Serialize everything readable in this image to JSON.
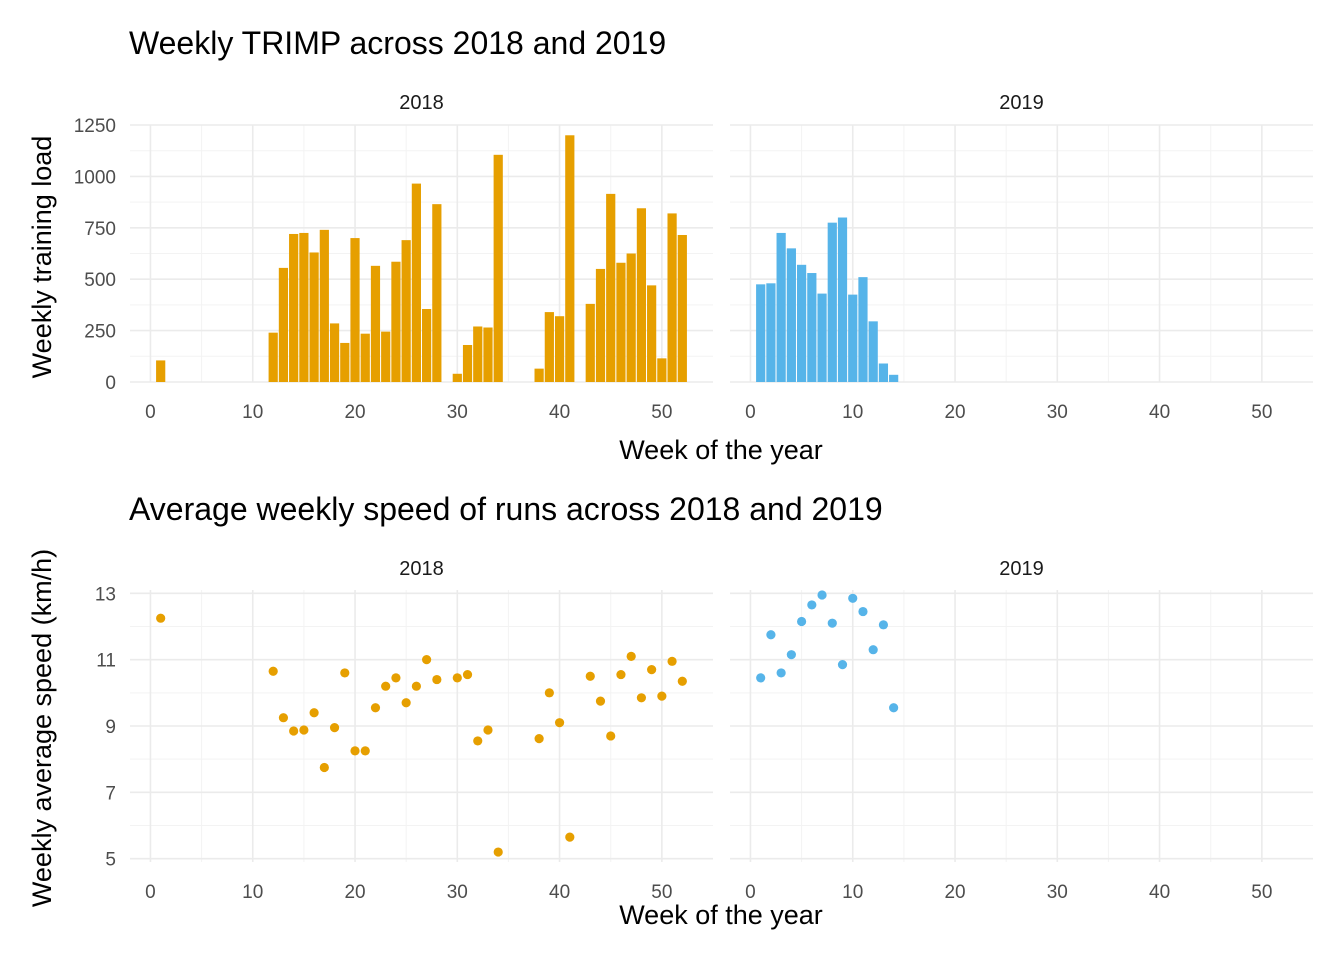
{
  "colors": {
    "2018": "#E69F00",
    "2019": "#56B4E9"
  },
  "chart_data": [
    {
      "type": "bar",
      "title": "Weekly TRIMP across 2018 and 2019",
      "xlabel": "Week of the year",
      "ylabel": "Weekly training load",
      "xlim": [
        -2,
        55
      ],
      "ylim": [
        0,
        1250
      ],
      "xticks": [
        0,
        10,
        20,
        30,
        40,
        50
      ],
      "yticks": [
        0,
        250,
        500,
        750,
        1000,
        1250
      ],
      "yticklabels": [
        "0",
        "250",
        "500",
        "750",
        "1000",
        "1250"
      ],
      "grid": true,
      "legend": "none",
      "panels": [
        {
          "strip": "2018",
          "x": [
            1,
            12,
            13,
            14,
            15,
            16,
            17,
            18,
            19,
            20,
            21,
            22,
            23,
            24,
            25,
            26,
            27,
            28,
            30,
            31,
            32,
            33,
            34,
            38,
            39,
            40,
            41,
            43,
            44,
            45,
            46,
            47,
            48,
            49,
            50,
            51,
            52
          ],
          "values": [
            105,
            240,
            555,
            720,
            725,
            630,
            740,
            285,
            190,
            700,
            235,
            565,
            245,
            585,
            690,
            965,
            355,
            865,
            40,
            180,
            270,
            265,
            1105,
            65,
            340,
            320,
            1200,
            380,
            550,
            915,
            580,
            625,
            845,
            470,
            115,
            820,
            715
          ]
        },
        {
          "strip": "2019",
          "x": [
            1,
            2,
            3,
            4,
            5,
            6,
            7,
            8,
            9,
            10,
            11,
            12,
            13,
            14
          ],
          "values": [
            475,
            480,
            725,
            650,
            570,
            530,
            430,
            775,
            800,
            425,
            510,
            295,
            90,
            35
          ]
        }
      ]
    },
    {
      "type": "scatter",
      "title": "Average weekly speed of runs across 2018 and 2019",
      "xlabel": "Week of the year",
      "ylabel": "Weekly average speed (km/h)",
      "xlim": [
        -2,
        55
      ],
      "ylim": [
        4.9,
        13.1
      ],
      "xticks": [
        0,
        10,
        20,
        30,
        40,
        50
      ],
      "yticks": [
        5,
        7,
        9,
        11,
        13
      ],
      "yticklabels": [
        "5",
        "7",
        "9",
        "11",
        "13"
      ],
      "grid": true,
      "legend": "none",
      "panels": [
        {
          "strip": "2018",
          "x": [
            1,
            12,
            13,
            14,
            15,
            16,
            17,
            18,
            19,
            20,
            21,
            22,
            23,
            24,
            25,
            26,
            27,
            28,
            30,
            31,
            32,
            33,
            34,
            38,
            39,
            40,
            41,
            43,
            44,
            45,
            46,
            47,
            48,
            49,
            50,
            51,
            52
          ],
          "y": [
            12.25,
            10.65,
            9.25,
            8.85,
            8.88,
            9.4,
            7.75,
            8.95,
            10.6,
            8.25,
            8.25,
            9.55,
            10.2,
            10.45,
            9.7,
            10.2,
            11.0,
            10.4,
            10.45,
            10.55,
            8.55,
            8.88,
            5.2,
            8.62,
            10.0,
            9.1,
            5.65,
            10.5,
            9.75,
            8.7,
            10.55,
            11.1,
            9.85,
            10.7,
            9.9,
            10.95,
            10.35
          ]
        },
        {
          "strip": "2019",
          "x": [
            1,
            2,
            3,
            4,
            5,
            6,
            7,
            8,
            9,
            10,
            11,
            12,
            13,
            14
          ],
          "y": [
            10.45,
            11.75,
            10.6,
            11.15,
            12.15,
            12.65,
            12.95,
            12.1,
            10.85,
            12.85,
            12.45,
            11.3,
            12.05,
            9.55
          ]
        }
      ]
    }
  ]
}
